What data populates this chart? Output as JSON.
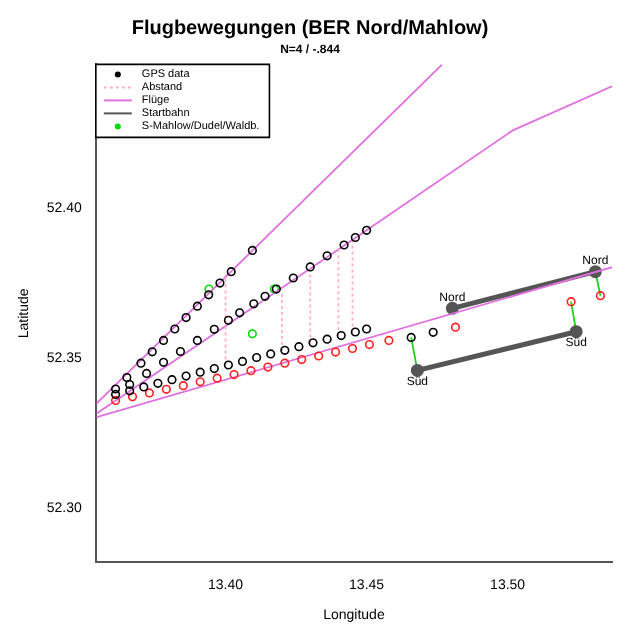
{
  "chart_data": {
    "type": "scatter",
    "title": "Flugbewegungen (BER Nord/Mahlow)",
    "subtitle": "N=4 / -.844",
    "xlabel": "Longitude",
    "ylabel": "Latitude",
    "xlim": [
      13.354,
      13.537
    ],
    "ylim": [
      52.282,
      52.448
    ],
    "xticks": [
      {
        "value": 13.4,
        "label": "13.40"
      },
      {
        "value": 13.45,
        "label": "13.45"
      },
      {
        "value": 13.5,
        "label": "13.50"
      }
    ],
    "yticks": [
      {
        "value": 52.3,
        "label": "52.30"
      },
      52.35,
      {
        "value": 52.4,
        "label": "52.40"
      }
    ],
    "grid": false,
    "legend": "top left",
    "series": [
      {
        "name": "GPS data",
        "type": "scatter",
        "marker": "circle",
        "color": "#000000",
        "x": [
          13.361,
          13.365,
          13.37,
          13.374,
          13.378,
          13.382,
          13.386,
          13.39,
          13.394,
          13.398,
          13.402,
          13.4095,
          13.366,
          13.372,
          13.378,
          13.384,
          13.39,
          13.396,
          13.401,
          13.405,
          13.41,
          13.414,
          13.418,
          13.424,
          13.43,
          13.436,
          13.442,
          13.446,
          13.45,
          13.361,
          13.366,
          13.371,
          13.376,
          13.381,
          13.386,
          13.391,
          13.396,
          13.401,
          13.406,
          13.411,
          13.416,
          13.421,
          13.426,
          13.431,
          13.436,
          13.441,
          13.446,
          13.45,
          13.4658,
          13.4736
        ],
        "values": [
          52.3398,
          52.3436,
          52.3484,
          52.3522,
          52.356,
          52.3598,
          52.3636,
          52.3674,
          52.3712,
          52.3751,
          52.3789,
          52.386,
          52.3413,
          52.345,
          52.3487,
          52.3523,
          52.356,
          52.3597,
          52.3627,
          52.3652,
          52.3682,
          52.3707,
          52.3731,
          52.3768,
          52.3805,
          52.3842,
          52.3878,
          52.3903,
          52.3927,
          52.338,
          52.3392,
          52.3405,
          52.3417,
          52.3429,
          52.3441,
          52.3454,
          52.3466,
          52.3478,
          52.349,
          52.3503,
          52.3515,
          52.3527,
          52.3539,
          52.3552,
          52.3564,
          52.3576,
          52.3588,
          52.3598,
          52.357,
          52.3587
        ]
      },
      {
        "type": "scatter",
        "marker": "circle",
        "color": "#ff2020",
        "x": [
          13.361,
          13.367,
          13.373,
          13.379,
          13.385,
          13.391,
          13.397,
          13.403,
          13.409,
          13.415,
          13.421,
          13.427,
          13.433,
          13.439,
          13.445,
          13.451,
          13.4579,
          13.4815,
          13.5225,
          13.5329
        ],
        "values": [
          52.336,
          52.3372,
          52.3385,
          52.3397,
          52.3409,
          52.3422,
          52.3434,
          52.3446,
          52.3459,
          52.3471,
          52.3484,
          52.3496,
          52.3508,
          52.3521,
          52.3533,
          52.3546,
          52.356,
          52.3604,
          52.3689,
          52.3709
        ]
      },
      {
        "name": "Abstand",
        "type": "line",
        "marker": "none",
        "line_style": "dotted",
        "color": "#ffb0c0",
        "x": [
          13.4,
          13.4,
          null,
          13.42,
          13.42,
          null,
          13.43,
          13.43,
          null,
          13.44,
          13.44,
          null,
          13.445,
          13.445
        ],
        "values": [
          52.3476,
          52.378,
          null,
          52.3525,
          52.3725,
          null,
          52.355,
          52.38,
          null,
          52.3574,
          52.3866,
          null,
          52.3586,
          52.39
        ]
      },
      {
        "name": "Flüge",
        "type": "line",
        "marker": "none",
        "line_style": "solid",
        "color": "#e070e0",
        "x": [
          13.3543,
          13.4768,
          null,
          13.3543,
          13.45,
          13.5018,
          13.537,
          null,
          13.3543,
          13.537
        ],
        "values": [
          52.335,
          52.448,
          null,
          52.3316,
          52.3927,
          52.426,
          52.4407,
          null,
          52.3304,
          52.3804
        ]
      },
      {
        "name": "Startbahn",
        "type": "line",
        "marker": "circle",
        "line_style": "solid",
        "color": "#555555",
        "x": [
          13.4804,
          13.5311,
          null,
          13.468,
          13.5243
        ],
        "values": [
          52.3667,
          52.3789,
          null,
          52.346,
          52.3589
        ]
      },
      {
        "type": "line",
        "marker": "none",
        "line_style": "solid",
        "color": "#20d020",
        "x": [
          13.4658,
          13.468,
          null,
          13.5225,
          13.5243,
          null,
          13.5311,
          13.5329
        ],
        "values": [
          52.357,
          52.346,
          null,
          52.3689,
          52.3589,
          null,
          52.3789,
          52.3709
        ]
      },
      {
        "name": "S-Mahlow/Dudel/Waldb.",
        "type": "scatter",
        "marker": "circle",
        "color": "#00dd00",
        "x": [
          13.3941,
          13.4095,
          13.4173
        ],
        "values": [
          52.3731,
          52.3582,
          52.3731
        ]
      }
    ],
    "annotations": [
      {
        "text": "Nord",
        "x": 13.4804,
        "y": 52.3704
      },
      {
        "text": "Nord",
        "x": 13.5311,
        "y": 52.3827
      },
      {
        "text": "Süd",
        "x": 13.468,
        "y": 52.3422
      },
      {
        "text": "Süd",
        "x": 13.5243,
        "y": 52.3553
      }
    ]
  }
}
